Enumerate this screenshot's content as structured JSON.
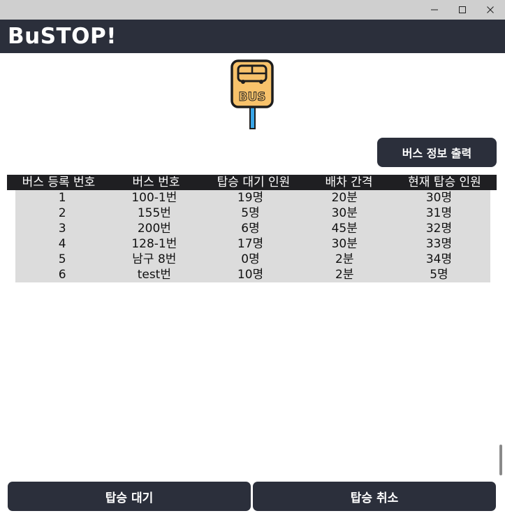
{
  "window": {
    "minimize_glyph": "─",
    "maximize_glyph": "☐",
    "close_glyph": "✕"
  },
  "header": {
    "title": "BuSTOP!"
  },
  "logo": {
    "icon": "bus-stop-sign-icon",
    "text": "BUS",
    "colors": {
      "sign": "#F7C26B",
      "outline": "#1d1d1d",
      "pole": "#3aa6e8"
    }
  },
  "toolbar": {
    "info_label": "버스 정보 출력"
  },
  "table": {
    "columns": [
      "버스 등록 번호",
      "버스 번호",
      "탑승 대기 인원",
      "배차 간격",
      "현재 탑승 인원"
    ],
    "rows": [
      [
        "1",
        "100-1번",
        "19명",
        "20분",
        "30명"
      ],
      [
        "2",
        "155번",
        "5명",
        "30분",
        "31명"
      ],
      [
        "3",
        "200번",
        "6명",
        "45분",
        "32명"
      ],
      [
        "4",
        "128-1번",
        "17명",
        "30분",
        "33명"
      ],
      [
        "5",
        "남구 8번",
        "0명",
        "2분",
        "34명"
      ],
      [
        "6",
        "test번",
        "10명",
        "2분",
        "5명"
      ]
    ]
  },
  "actions": {
    "wait_label": "탑승 대기",
    "cancel_label": "탑승 취소"
  },
  "theme": {
    "header_bg": "#2b2f3b",
    "row_bg": "#dcdcdc",
    "table_header_bg": "#1f1f22"
  }
}
